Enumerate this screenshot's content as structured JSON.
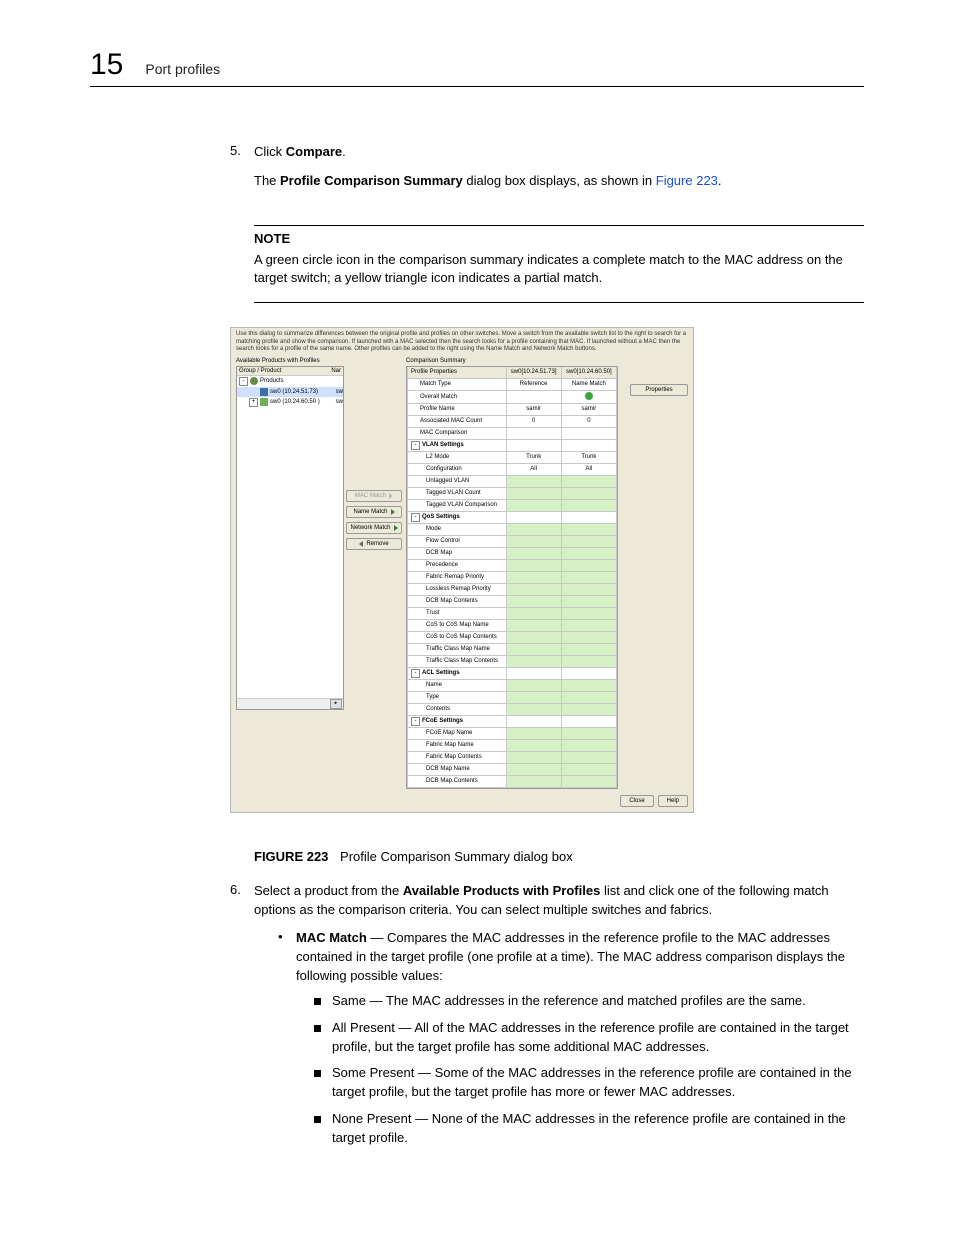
{
  "header": {
    "chapter_num": "15",
    "chapter_title": "Port profiles"
  },
  "step5": {
    "num": "5.",
    "text_pre": "Click ",
    "bold": "Compare",
    "text_post": ".",
    "para2_pre": "The ",
    "para2_bold": "Profile Comparison Summary",
    "para2_mid": " dialog box displays, as shown in ",
    "para2_link": "Figure 223",
    "para2_post": "."
  },
  "note": {
    "label": "NOTE",
    "body": "A green circle icon in the comparison summary indicates a complete match to the MAC address on the target switch; a yellow triangle icon indicates a partial match."
  },
  "dialog": {
    "intro": "Use this dialog to summarize differences between the original profile and profiles on other switches. Move a switch from the available switch list to the right to search for a matching profile and show the comparison. If launched with a MAC selected then the search looks for a profile containing that MAC. If launched without a MAC then the search looks for a profile of the same name. Other profiles can be added to the right using the Name Match and Network Match buttons.",
    "left_title": "Available Products with Profiles",
    "tree_hdr_left": "Group / Product",
    "tree_hdr_right": "Nar",
    "tree": [
      {
        "pm": "-",
        "icon": "globe",
        "label": "Products",
        "r": "",
        "ind": 0
      },
      {
        "pm": "",
        "icon": "sw1",
        "label": "sw0 (10.24.51.73)",
        "r": "sw",
        "ind": 1,
        "sel": true
      },
      {
        "pm": "+",
        "icon": "sw2",
        "label": "sw0 (10.24.60.50 )",
        "r": "sw",
        "ind": 1
      }
    ],
    "mid_buttons": [
      {
        "label": "MAC Match",
        "arrow": "r",
        "disabled": true
      },
      {
        "label": "Name Match",
        "arrow": "r",
        "disabled": false
      },
      {
        "label": "Network Match",
        "arrow": "r",
        "disabled": false
      },
      {
        "label": "Remove",
        "arrow": "l",
        "disabled": false
      }
    ],
    "cs_title": "Comparison Summary",
    "cols": [
      "Profile Properties",
      "sw0[10.24.51.73]",
      "sw0[10.24.60.50]"
    ],
    "rows": [
      {
        "t": "r",
        "c1": "Match Type",
        "c2": "Reference",
        "c3": "Name Match",
        "ind": 1
      },
      {
        "t": "r",
        "c1": "Overall Match",
        "c2": "",
        "c3": "●",
        "ind": 1,
        "dot": true
      },
      {
        "t": "r",
        "c1": "Profile Name",
        "c2": "samir",
        "c3": "samir",
        "ind": 1
      },
      {
        "t": "r",
        "c1": "Associated MAC Count",
        "c2": "0",
        "c3": "0",
        "ind": 1
      },
      {
        "t": "r",
        "c1": "MAC Comparison",
        "c2": "",
        "c3": "",
        "ind": 1
      },
      {
        "t": "s",
        "c1": "VLAN Settings"
      },
      {
        "t": "r",
        "c1": "L2 Mode",
        "c2": "Trunk",
        "c3": "Trunk",
        "ind": 2
      },
      {
        "t": "r",
        "c1": "Configuration",
        "c2": "All",
        "c3": "All",
        "ind": 2
      },
      {
        "t": "g",
        "c1": "Untagged VLAN",
        "ind": 2
      },
      {
        "t": "g",
        "c1": "Tagged VLAN Count",
        "ind": 2
      },
      {
        "t": "g",
        "c1": "Tagged VLAN Comparison",
        "ind": 2
      },
      {
        "t": "s",
        "c1": "QoS Settings"
      },
      {
        "t": "g",
        "c1": "Mode",
        "ind": 2
      },
      {
        "t": "g",
        "c1": "Flow Control",
        "ind": 2
      },
      {
        "t": "g",
        "c1": "DCB Map",
        "ind": 2
      },
      {
        "t": "g",
        "c1": "Precedence",
        "ind": 2
      },
      {
        "t": "g",
        "c1": "Fabric Remap Priority",
        "ind": 2
      },
      {
        "t": "g",
        "c1": "Lossless Remap Priority",
        "ind": 2
      },
      {
        "t": "g",
        "c1": "DCB Map Contents",
        "ind": 2
      },
      {
        "t": "g",
        "c1": "Trust",
        "ind": 2
      },
      {
        "t": "g",
        "c1": "CoS to CoS Map Name",
        "ind": 2
      },
      {
        "t": "g",
        "c1": "CoS to CoS Map Contents",
        "ind": 2
      },
      {
        "t": "g",
        "c1": "Traffic Class Map Name",
        "ind": 2
      },
      {
        "t": "g",
        "c1": "Traffic Class Map Contents",
        "ind": 2
      },
      {
        "t": "s",
        "c1": "ACL Settings"
      },
      {
        "t": "g",
        "c1": "Name",
        "ind": 2
      },
      {
        "t": "g",
        "c1": "Type",
        "ind": 2
      },
      {
        "t": "g",
        "c1": "Contents",
        "ind": 2
      },
      {
        "t": "s",
        "c1": "FCoE Settings"
      },
      {
        "t": "g",
        "c1": "FCoE Map Name",
        "ind": 2
      },
      {
        "t": "g",
        "c1": "Fabric Map Name",
        "ind": 2
      },
      {
        "t": "g",
        "c1": "Fabric Map Contents",
        "ind": 2
      },
      {
        "t": "g",
        "c1": "DCB Map Name",
        "ind": 2
      },
      {
        "t": "g",
        "c1": "DCB Map Contents",
        "ind": 2
      }
    ],
    "prop_btn": "Properties",
    "close": "Close",
    "help": "Help"
  },
  "figure": {
    "num": "FIGURE 223",
    "caption": "Profile Comparison Summary dialog box"
  },
  "step6": {
    "num": "6.",
    "pre": "Select a product from the ",
    "bold": "Available Products with Profiles",
    "post": " list and click one of the following match options as the comparison criteria. You can select multiple switches and fabrics."
  },
  "mac": {
    "bold": "MAC Match",
    "body": " — Compares the MAC addresses in the reference profile to the MAC addresses contained in the target profile (one profile at a time). The MAC address comparison displays the following possible values:",
    "items": [
      "Same — The MAC addresses in the reference and matched profiles are the same.",
      "All Present — All of the MAC addresses in the reference profile are contained in the target profile, but the target profile has some additional MAC addresses.",
      "Some Present — Some of the MAC addresses in the reference profile are contained in the target profile, but the target profile has more or fewer MAC addresses.",
      "None Present — None of the MAC addresses in the reference profile are contained in the target profile."
    ]
  }
}
